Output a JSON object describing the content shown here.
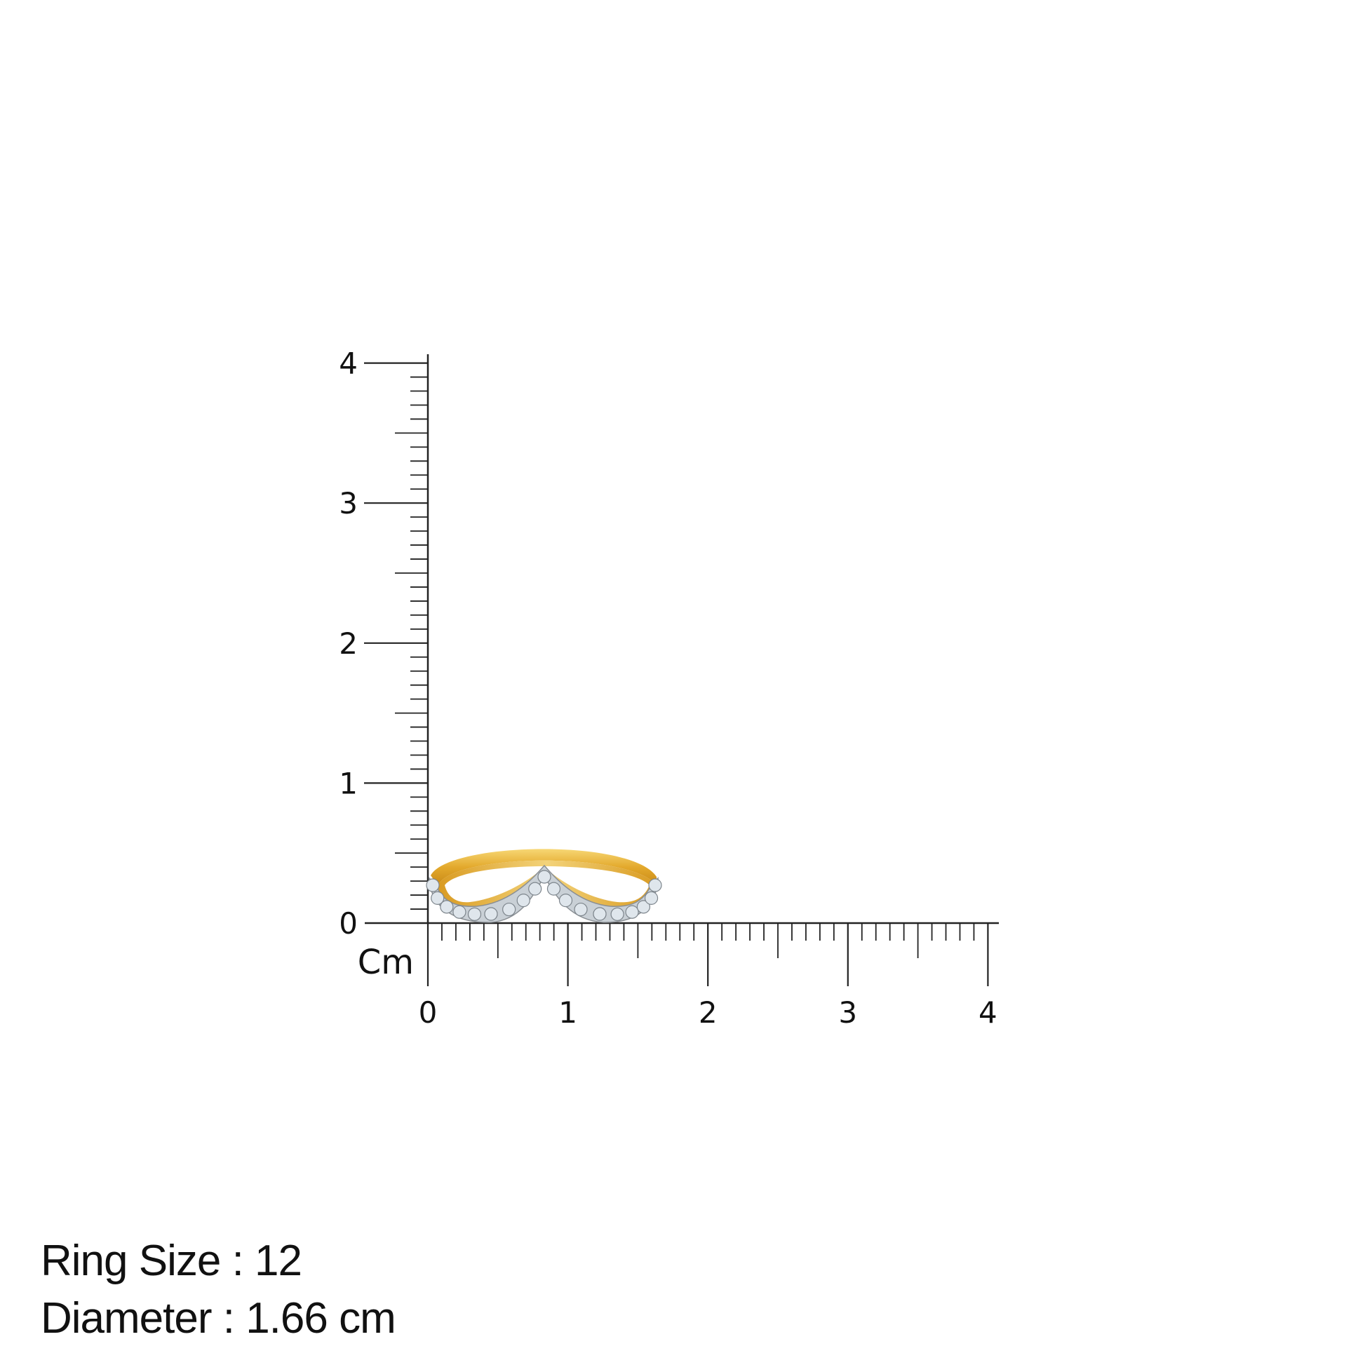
{
  "ruler": {
    "unit_label": "Cm",
    "x_tick_labels": [
      "0",
      "1",
      "2",
      "3",
      "4"
    ],
    "y_tick_labels": [
      "0",
      "1",
      "2",
      "3",
      "4"
    ],
    "range_cm": [
      0,
      4
    ],
    "minor_divisions_per_cm": 10,
    "line_color": "#222222"
  },
  "product": {
    "metal_color": "#e8b33a",
    "stone_color": "#dfe6ec",
    "measured_height_cm": 0.55,
    "measured_width_cm": 1.63
  },
  "specs": {
    "ring_size": "Ring Size : 12",
    "diameter": "Diameter : 1.66 cm"
  }
}
